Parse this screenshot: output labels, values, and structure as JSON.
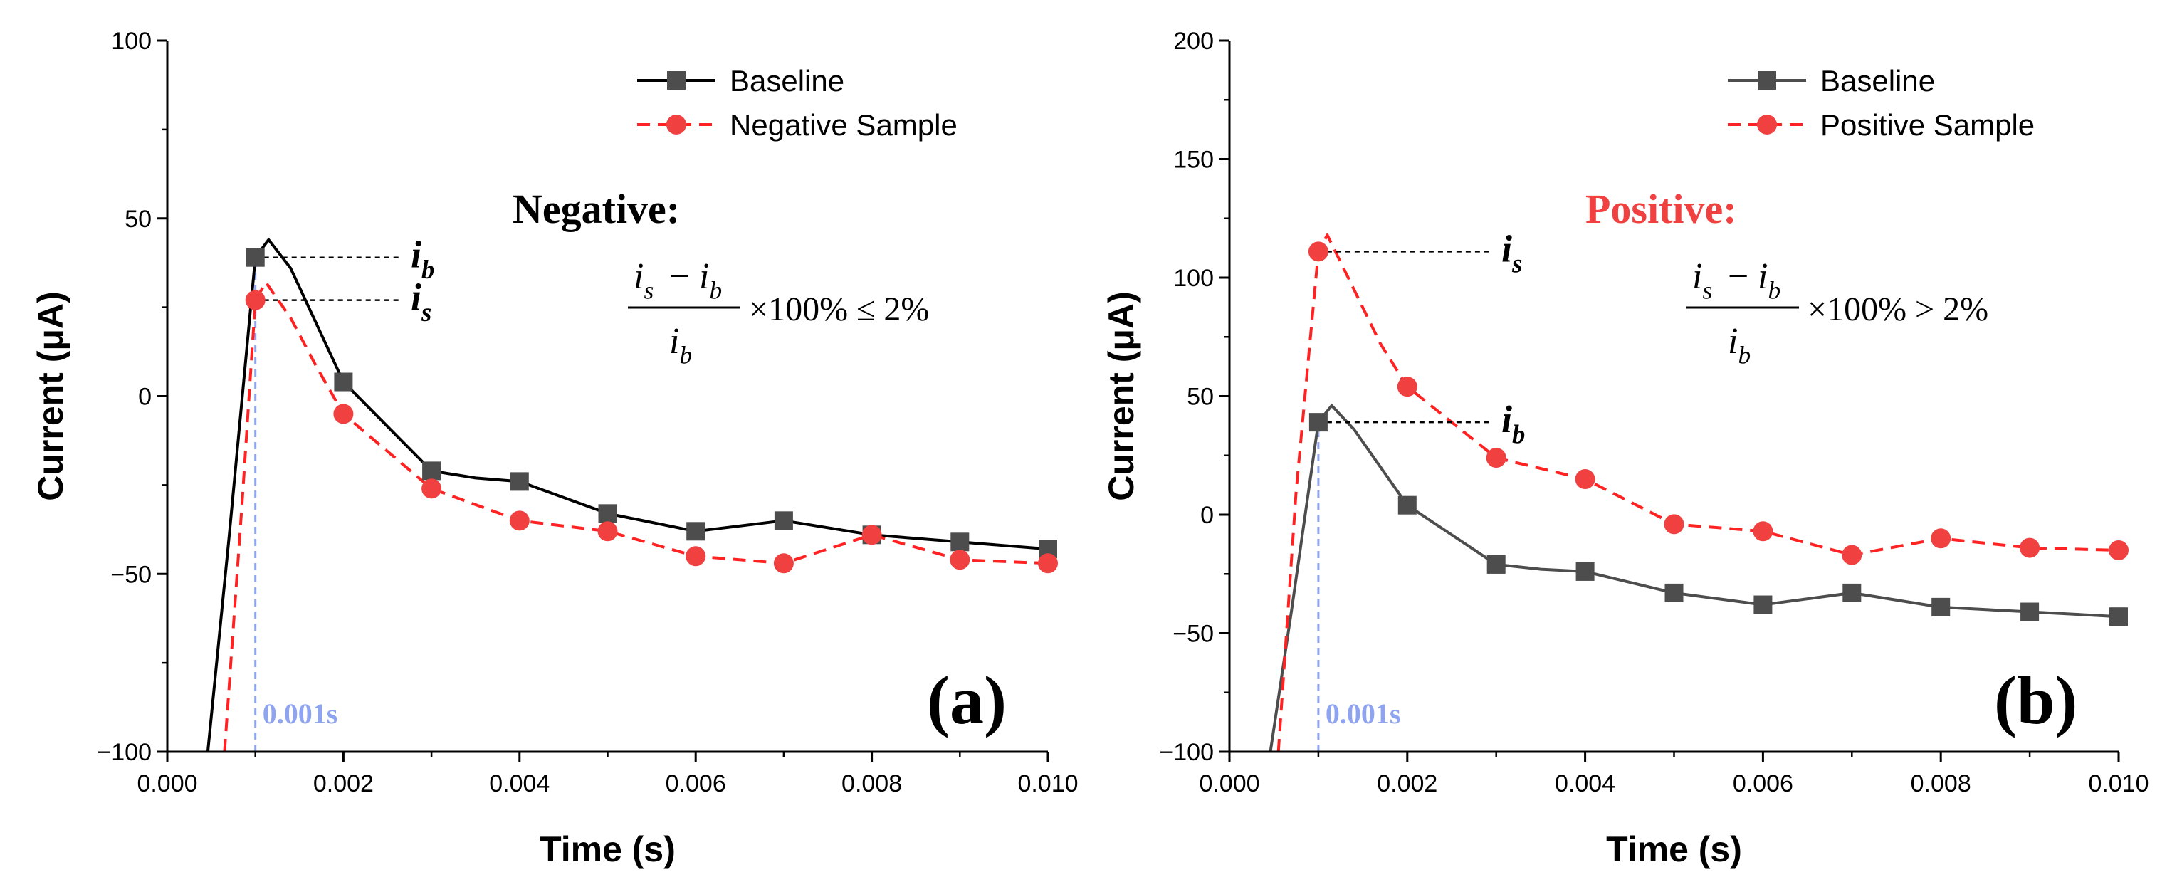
{
  "chart_data": [
    {
      "type": "line",
      "panel_label": "(a)",
      "xlabel": "Time (s)",
      "ylabel": "Current (μA)",
      "xlim": [
        0,
        0.01
      ],
      "ylim": [
        -100,
        100
      ],
      "xticks": [
        "0.000",
        "0.002",
        "0.004",
        "0.006",
        "0.008",
        "0.010"
      ],
      "yticks": [
        "−100",
        "−50",
        "0",
        "50",
        "100"
      ],
      "ytick_values": [
        -100,
        -50,
        0,
        50,
        100
      ],
      "legend_position": "top-right",
      "annotation_title": "Negative:",
      "annotation_color": "#000000",
      "formula_numerator_left": "i",
      "formula_numerator_left_sub": "s",
      "formula_minus": "−",
      "formula_numerator_right": "i",
      "formula_numerator_right_sub": "b",
      "formula_denominator": "i",
      "formula_denominator_sub": "b",
      "formula_relation": "×100% ≤ 2%",
      "label_upper": "i",
      "label_upper_sub": "b",
      "label_lower": "i",
      "label_lower_sub": "s",
      "vline_label": "0.001s",
      "vline_x": 0.001,
      "series": [
        {
          "name": "Baseline",
          "color": "#000000",
          "marker_color": "#4d4d4d",
          "dash": "solid",
          "marker": "square",
          "x": [
            0.001,
            0.002,
            0.003,
            0.004,
            0.005,
            0.006,
            0.007,
            0.008,
            0.009,
            0.01
          ],
          "values": [
            39,
            4,
            -21,
            -24,
            -33,
            -38,
            -35,
            -39,
            -41,
            -43
          ],
          "curve_x": [
            0.00046,
            0.0007,
            0.001,
            0.00115,
            0.0014,
            0.0017,
            0.002,
            0.003,
            0.0035,
            0.004,
            0.005,
            0.006,
            0.007,
            0.008,
            0.009,
            0.01
          ],
          "curve_y": [
            -100,
            -40,
            39,
            44,
            36,
            20,
            4,
            -21,
            -23,
            -24,
            -33,
            -38,
            -35,
            -39,
            -41,
            -43
          ]
        },
        {
          "name": "Negative Sample",
          "color": "#ff2222",
          "marker_color": "#f04040",
          "dash": "dashed",
          "marker": "circle",
          "x": [
            0.001,
            0.002,
            0.003,
            0.004,
            0.005,
            0.006,
            0.007,
            0.008,
            0.009,
            0.01
          ],
          "values": [
            27,
            -5,
            -26,
            -35,
            -38,
            -45,
            -47,
            -39,
            -46,
            -47
          ],
          "curve_x": [
            0.00065,
            0.00085,
            0.001,
            0.00112,
            0.0014,
            0.0017,
            0.002,
            0.003,
            0.004,
            0.005,
            0.006,
            0.007,
            0.008,
            0.009,
            0.01
          ],
          "curve_y": [
            -100,
            -30,
            27,
            32,
            22,
            8,
            -5,
            -26,
            -35,
            -38,
            -45,
            -47,
            -39,
            -46,
            -47
          ]
        }
      ]
    },
    {
      "type": "line",
      "panel_label": "(b)",
      "xlabel": "Time (s)",
      "ylabel": "Current (μA)",
      "xlim": [
        0,
        0.01
      ],
      "ylim": [
        -100,
        200
      ],
      "xticks": [
        "0.000",
        "0.002",
        "0.004",
        "0.006",
        "0.008",
        "0.010"
      ],
      "yticks": [
        "−100",
        "−50",
        "0",
        "50",
        "100",
        "150",
        "200"
      ],
      "ytick_values": [
        -100,
        -50,
        0,
        50,
        100,
        150,
        200
      ],
      "legend_position": "top-right",
      "annotation_title": "Positive:",
      "annotation_color": "#f04040",
      "formula_numerator_left": "i",
      "formula_numerator_left_sub": "s",
      "formula_minus": "−",
      "formula_numerator_right": "i",
      "formula_numerator_right_sub": "b",
      "formula_denominator": "i",
      "formula_denominator_sub": "b",
      "formula_relation": "×100% > 2%",
      "label_upper": "i",
      "label_upper_sub": "s",
      "label_lower": "i",
      "label_lower_sub": "b",
      "vline_label": "0.001s",
      "vline_x": 0.001,
      "series": [
        {
          "name": "Baseline",
          "color": "#4d4d4d",
          "marker_color": "#4d4d4d",
          "dash": "solid",
          "marker": "square",
          "x": [
            0.001,
            0.002,
            0.003,
            0.004,
            0.005,
            0.006,
            0.007,
            0.008,
            0.009,
            0.01
          ],
          "values": [
            39,
            4,
            -21,
            -24,
            -33,
            -38,
            -33,
            -39,
            -41,
            -43
          ],
          "curve_x": [
            0.00046,
            0.0007,
            0.001,
            0.00115,
            0.0014,
            0.0017,
            0.002,
            0.003,
            0.0035,
            0.004,
            0.005,
            0.006,
            0.007,
            0.008,
            0.009,
            0.01
          ],
          "curve_y": [
            -100,
            -40,
            39,
            46,
            36,
            20,
            4,
            -21,
            -23,
            -24,
            -33,
            -38,
            -33,
            -39,
            -41,
            -43
          ]
        },
        {
          "name": "Positive Sample",
          "color": "#ff2222",
          "marker_color": "#f04040",
          "dash": "dashed",
          "marker": "circle",
          "x": [
            0.001,
            0.002,
            0.003,
            0.004,
            0.005,
            0.006,
            0.007,
            0.008,
            0.009,
            0.01
          ],
          "values": [
            111,
            54,
            24,
            15,
            -4,
            -7,
            -17,
            -10,
            -14,
            -15
          ],
          "curve_x": [
            0.00055,
            0.00075,
            0.001,
            0.0011,
            0.0014,
            0.0017,
            0.002,
            0.003,
            0.004,
            0.005,
            0.006,
            0.007,
            0.008,
            0.009,
            0.01
          ],
          "curve_y": [
            -100,
            10,
            111,
            118,
            95,
            72,
            54,
            24,
            15,
            -4,
            -7,
            -17,
            -10,
            -14,
            -15
          ]
        }
      ]
    }
  ]
}
